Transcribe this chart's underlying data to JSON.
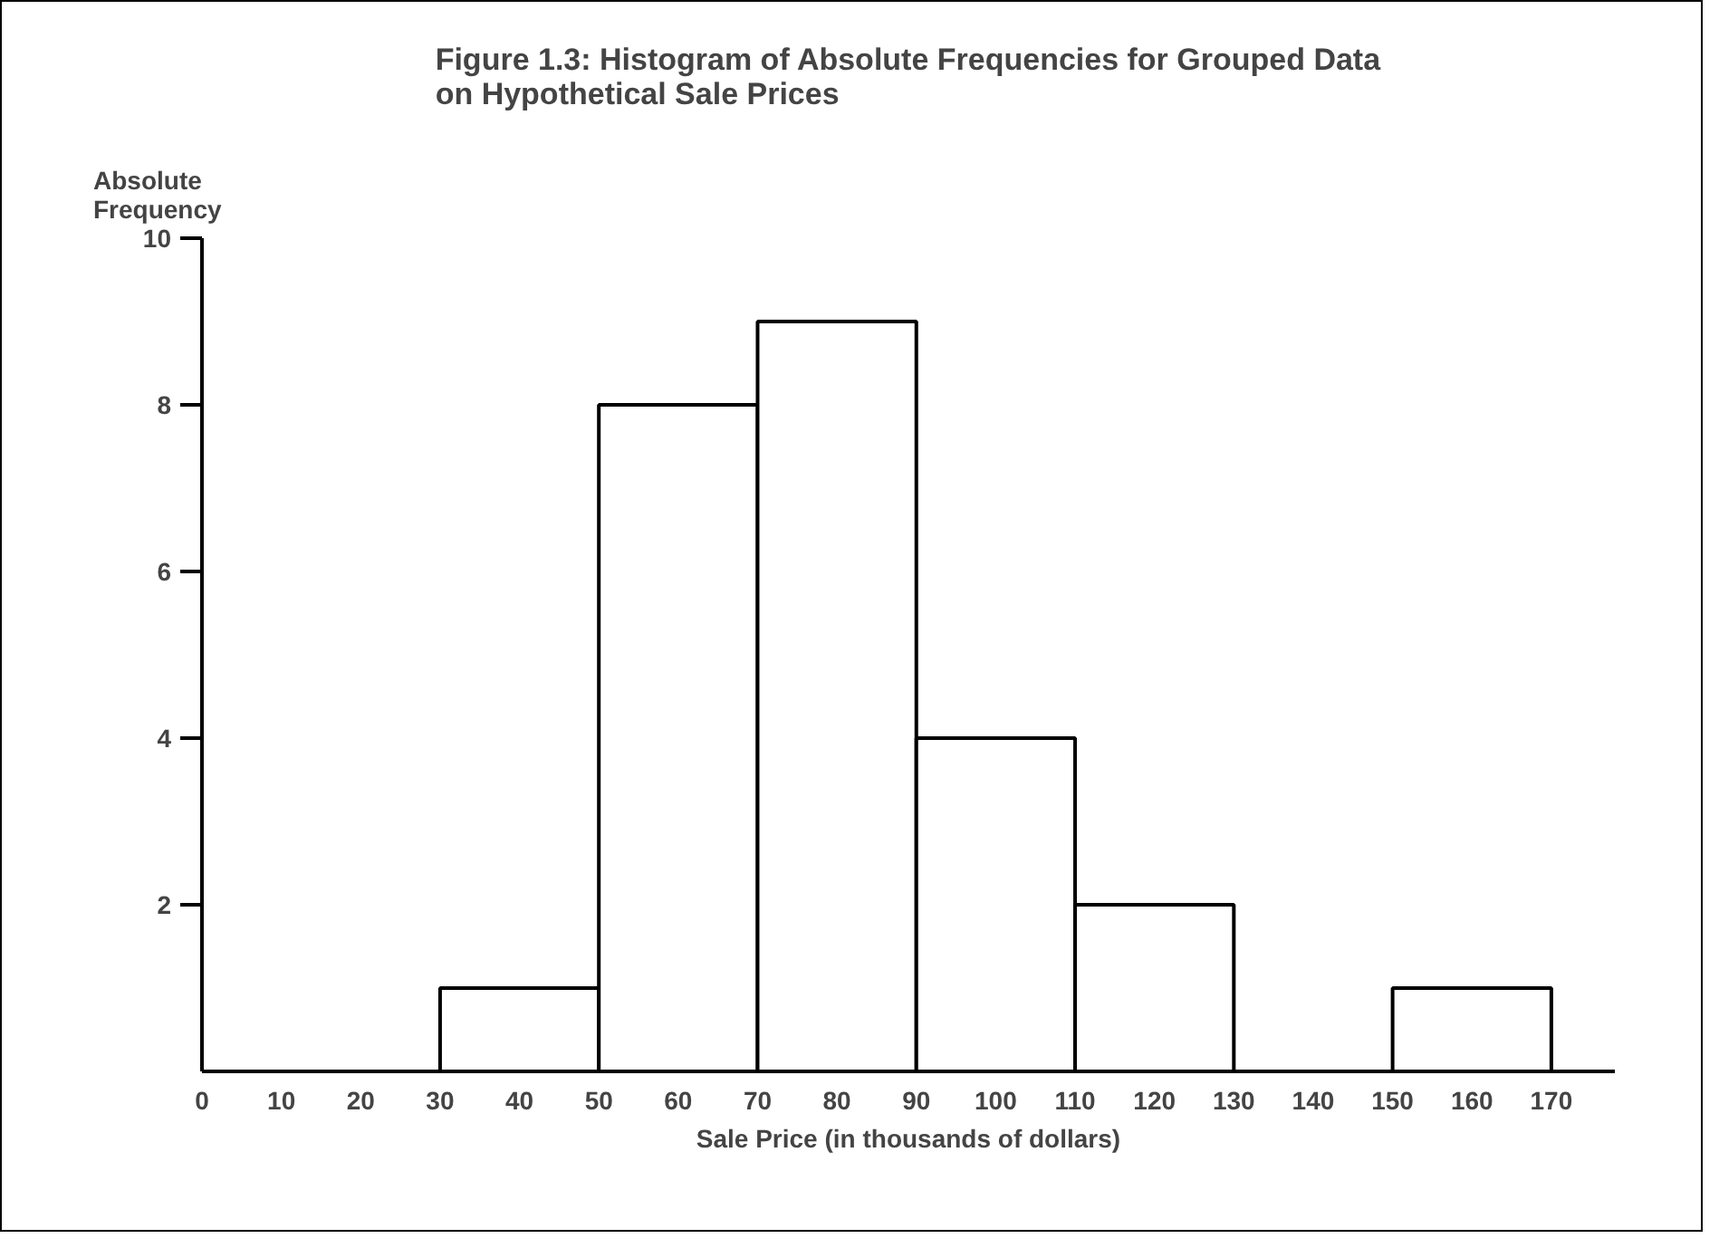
{
  "chart_data": {
    "type": "histogram",
    "title": "Figure 1.3: Histogram of Absolute Frequencies for Grouped Data\non Hypothetical Sale Prices",
    "xlabel": "Sale Price (in thousands of dollars)",
    "ylabel": "Absolute\nFrequency",
    "bins": [
      30,
      50,
      70,
      90,
      110,
      130,
      150,
      170
    ],
    "values": [
      1,
      8,
      9,
      4,
      2,
      0,
      1
    ],
    "color": "#ffffff",
    "xlim": [
      0,
      178
    ],
    "ylim": [
      0,
      10
    ],
    "xticks": [
      0,
      10,
      20,
      30,
      40,
      50,
      60,
      70,
      80,
      90,
      100,
      110,
      120,
      130,
      140,
      150,
      160,
      170
    ],
    "yticks": [
      2,
      4,
      6,
      8,
      10
    ],
    "grid": false
  }
}
